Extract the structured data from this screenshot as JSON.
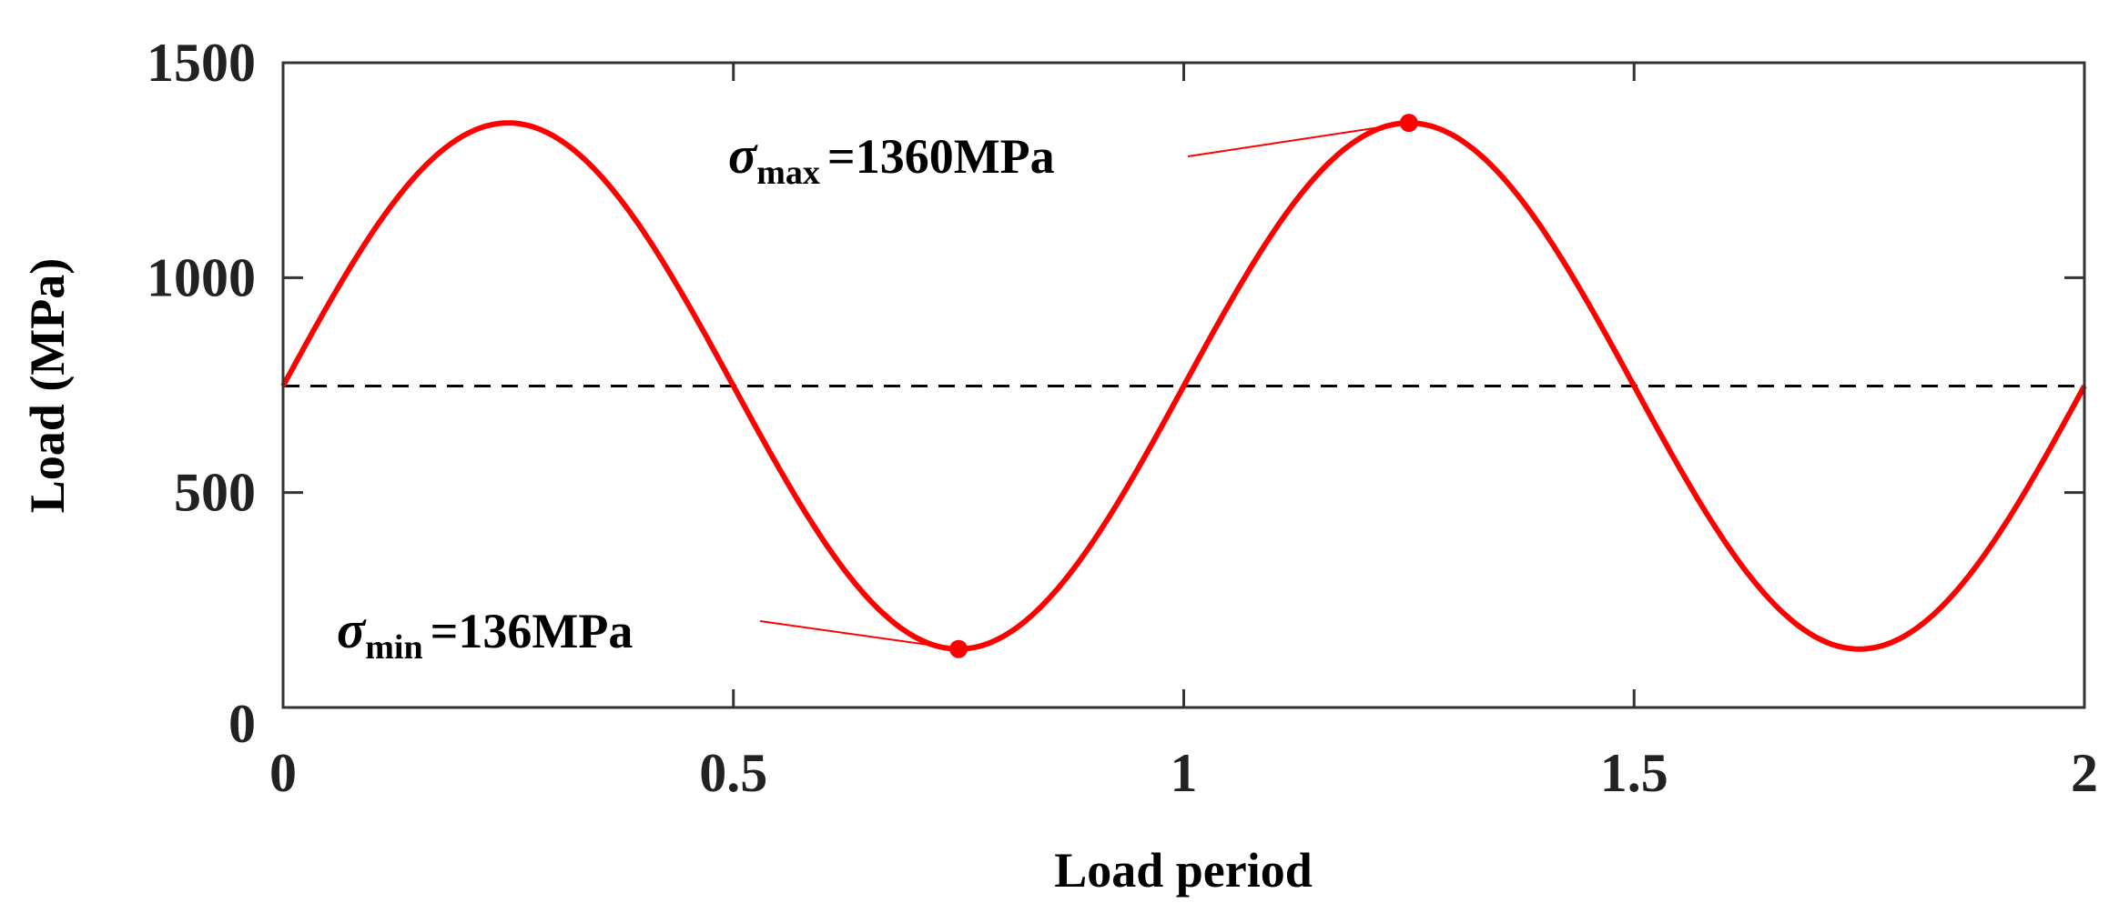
{
  "chart_data": {
    "type": "line",
    "title": "",
    "xlabel": "Load period",
    "ylabel": "Load (MPa)",
    "xlim": [
      0,
      2
    ],
    "ylim": [
      0,
      1500
    ],
    "xticks": [
      0,
      0.5,
      1,
      1.5,
      2
    ],
    "xtick_labels": [
      "0",
      "0.5",
      "1",
      "1.5",
      "2"
    ],
    "yticks": [
      0,
      500,
      1000,
      1500
    ],
    "ytick_labels": [
      "0",
      "500",
      "1000",
      "1500"
    ],
    "grid": false,
    "series": [
      {
        "name": "Load",
        "color": "#ff0000",
        "function": "mean + amplitude*sin(2*pi*x)",
        "mean": 748,
        "amplitude": 612,
        "period": 1
      }
    ],
    "mean_line": {
      "y": 748,
      "style": "dashed",
      "color": "#000000"
    },
    "annotations": [
      {
        "symbol": "σ",
        "subscript": "max",
        "text": "=1360MPa",
        "x": 1.25,
        "y": 1360
      },
      {
        "symbol": "σ",
        "subscript": "min",
        "text": "=136MPa",
        "x": 0.75,
        "y": 136
      }
    ]
  }
}
